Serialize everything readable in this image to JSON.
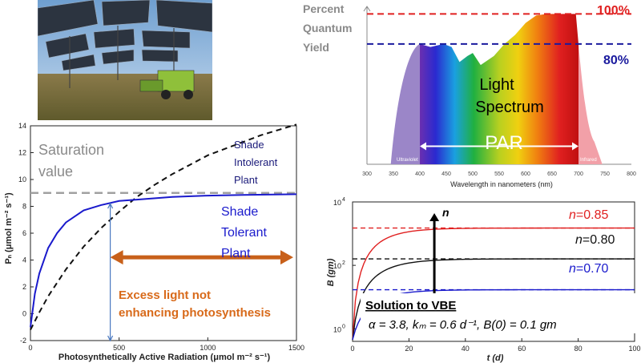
{
  "photo": {
    "description_icon": "solar-panel-field-icon"
  },
  "spectrum": {
    "ylabel_lines": [
      "Percent",
      "Quantum",
      "Yield"
    ],
    "ref_lines": [
      {
        "label": "100%",
        "value": 100,
        "color": "#e02020"
      },
      {
        "label": "80%",
        "value": 80,
        "color": "#1a1a9e"
      }
    ],
    "center_label_lines": [
      "Light",
      "Spectrum"
    ],
    "par_label": "PAR",
    "uv_label": "Ultraviolet",
    "ir_label": "Infrared",
    "xlabel": "Wavelength in nanometers (nm)",
    "xticks": [
      300,
      350,
      400,
      450,
      500,
      550,
      600,
      650,
      700,
      750,
      800
    ],
    "xlim": [
      300,
      800
    ],
    "par_range": [
      400,
      700
    ]
  },
  "chart_data": [
    {
      "type": "line",
      "xlabel": "Photosynthetically Active Radiation (μmol m⁻² s⁻¹)",
      "ylabel": "Pₙ (μmol m⁻² s⁻¹)",
      "xlim": [
        0,
        1500
      ],
      "ylim": [
        -2,
        14
      ],
      "xticks": [
        0,
        500,
        1000,
        1500
      ],
      "yticks": [
        -2,
        0,
        2,
        4,
        6,
        8,
        10,
        12,
        14
      ],
      "series": [
        {
          "name": "Shade Intolerant Plant",
          "color": "#111111",
          "style": "dashed",
          "x": [
            0,
            50,
            100,
            150,
            200,
            300,
            400,
            500,
            600,
            700,
            800,
            900,
            1000,
            1100,
            1200,
            1300,
            1400,
            1500
          ],
          "y": [
            -1.2,
            0.1,
            1.3,
            2.3,
            3.3,
            5.0,
            6.4,
            7.6,
            8.7,
            9.6,
            10.4,
            11.1,
            11.8,
            12.3,
            12.8,
            13.3,
            13.7,
            14.1
          ]
        },
        {
          "name": "Shade Tolerant Plant",
          "color": "#1a1acc",
          "style": "solid",
          "x": [
            0,
            25,
            50,
            100,
            150,
            200,
            300,
            400,
            500,
            600,
            800,
            1000,
            1200,
            1500
          ],
          "y": [
            -1.0,
            1.5,
            3.0,
            4.9,
            6.0,
            6.8,
            7.7,
            8.1,
            8.4,
            8.5,
            8.7,
            8.8,
            8.85,
            8.9
          ]
        }
      ],
      "saturation": {
        "label_lines": [
          "Saturation",
          "value"
        ],
        "y": 9
      },
      "series_labels": [
        {
          "lines": [
            "Shade",
            "Intolerant",
            "Plant"
          ]
        },
        {
          "lines": [
            "Shade",
            "Tolerant",
            "Plant"
          ]
        }
      ],
      "marker_x": 450,
      "excess_arrow": {
        "x_start": 450,
        "x_end": 1500,
        "y": 4.2
      },
      "excess_label_lines": [
        "Excess light not",
        "enhancing photosynthesis"
      ]
    },
    {
      "type": "line",
      "xlabel": "t (d)",
      "ylabel": "B (gm)",
      "xlim": [
        0,
        100
      ],
      "ylog": true,
      "ylim": [
        0.4,
        10000
      ],
      "xticks": [
        0,
        20,
        40,
        60,
        80,
        100
      ],
      "yticks": [
        {
          "value": 1,
          "label": "10",
          "exp": "0"
        },
        {
          "value": 100,
          "label": "10",
          "exp": "2"
        },
        {
          "value": 10000,
          "label": "10",
          "exp": "4"
        }
      ],
      "series": [
        {
          "name": "n=0.85",
          "n_label": "n",
          "n_value": "=0.85",
          "color": "#e02020",
          "asymptote": 1500
        },
        {
          "name": "n=0.80",
          "n_label": "n",
          "n_value": "=0.80",
          "color": "#111111",
          "asymptote": 160
        },
        {
          "name": "n=0.70",
          "n_label": "n",
          "n_value": "=0.70",
          "color": "#1a1acc",
          "asymptote": 17
        }
      ],
      "arrow_label": "n",
      "arrow_x": 29,
      "caption_title": "Solution to VBE",
      "caption_params": "α = 3.8, kₘ = 0.6 d⁻¹, B(0) = 0.1 gm"
    }
  ]
}
